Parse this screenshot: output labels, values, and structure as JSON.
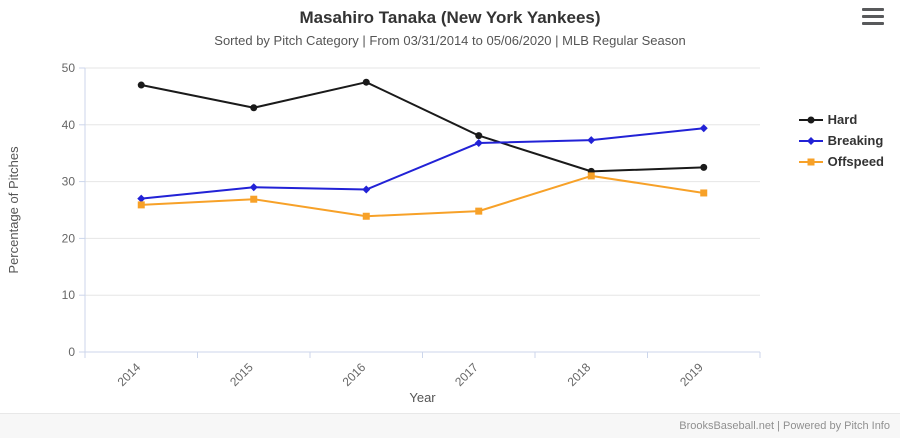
{
  "header": {
    "title": "Masahiro Tanaka (New York Yankees)",
    "subtitle": "Sorted by Pitch Category | From 03/31/2014 to 05/06/2020 | MLB Regular Season"
  },
  "footer": {
    "credit": "BrooksBaseball.net | Powered by Pitch Info"
  },
  "icons": {
    "menu": "hamburger-icon"
  },
  "colors": {
    "hard": "#1a1a1a",
    "breaking": "#2222d6",
    "offspeed": "#f7a128",
    "gridline": "#e6e6e6",
    "axis": "#ccd6eb",
    "tick_label": "#666666",
    "axis_title": "#555555"
  },
  "chart_data": {
    "type": "line",
    "title": "Masahiro Tanaka (New York Yankees)",
    "subtitle": "Sorted by Pitch Category | From 03/31/2014 to 05/06/2020 | MLB Regular Season",
    "categories": [
      "2014",
      "2015",
      "2016",
      "2017",
      "2018",
      "2019"
    ],
    "series": [
      {
        "name": "Hard",
        "color": "#1a1a1a",
        "marker": "circle",
        "values": [
          47.0,
          43.0,
          47.5,
          38.1,
          31.8,
          32.5
        ]
      },
      {
        "name": "Breaking",
        "color": "#2222d6",
        "marker": "diamond",
        "values": [
          27.0,
          29.0,
          28.6,
          36.8,
          37.3,
          39.4
        ]
      },
      {
        "name": "Offspeed",
        "color": "#f7a128",
        "marker": "square",
        "values": [
          25.9,
          26.9,
          23.9,
          24.8,
          31.0,
          28.0
        ]
      }
    ],
    "xlabel": "Year",
    "ylabel": "Percentage of Pitches",
    "ylim": [
      0,
      50
    ],
    "yticks": [
      0,
      10,
      20,
      30,
      40,
      50
    ],
    "grid": true,
    "legend_position": "right"
  }
}
